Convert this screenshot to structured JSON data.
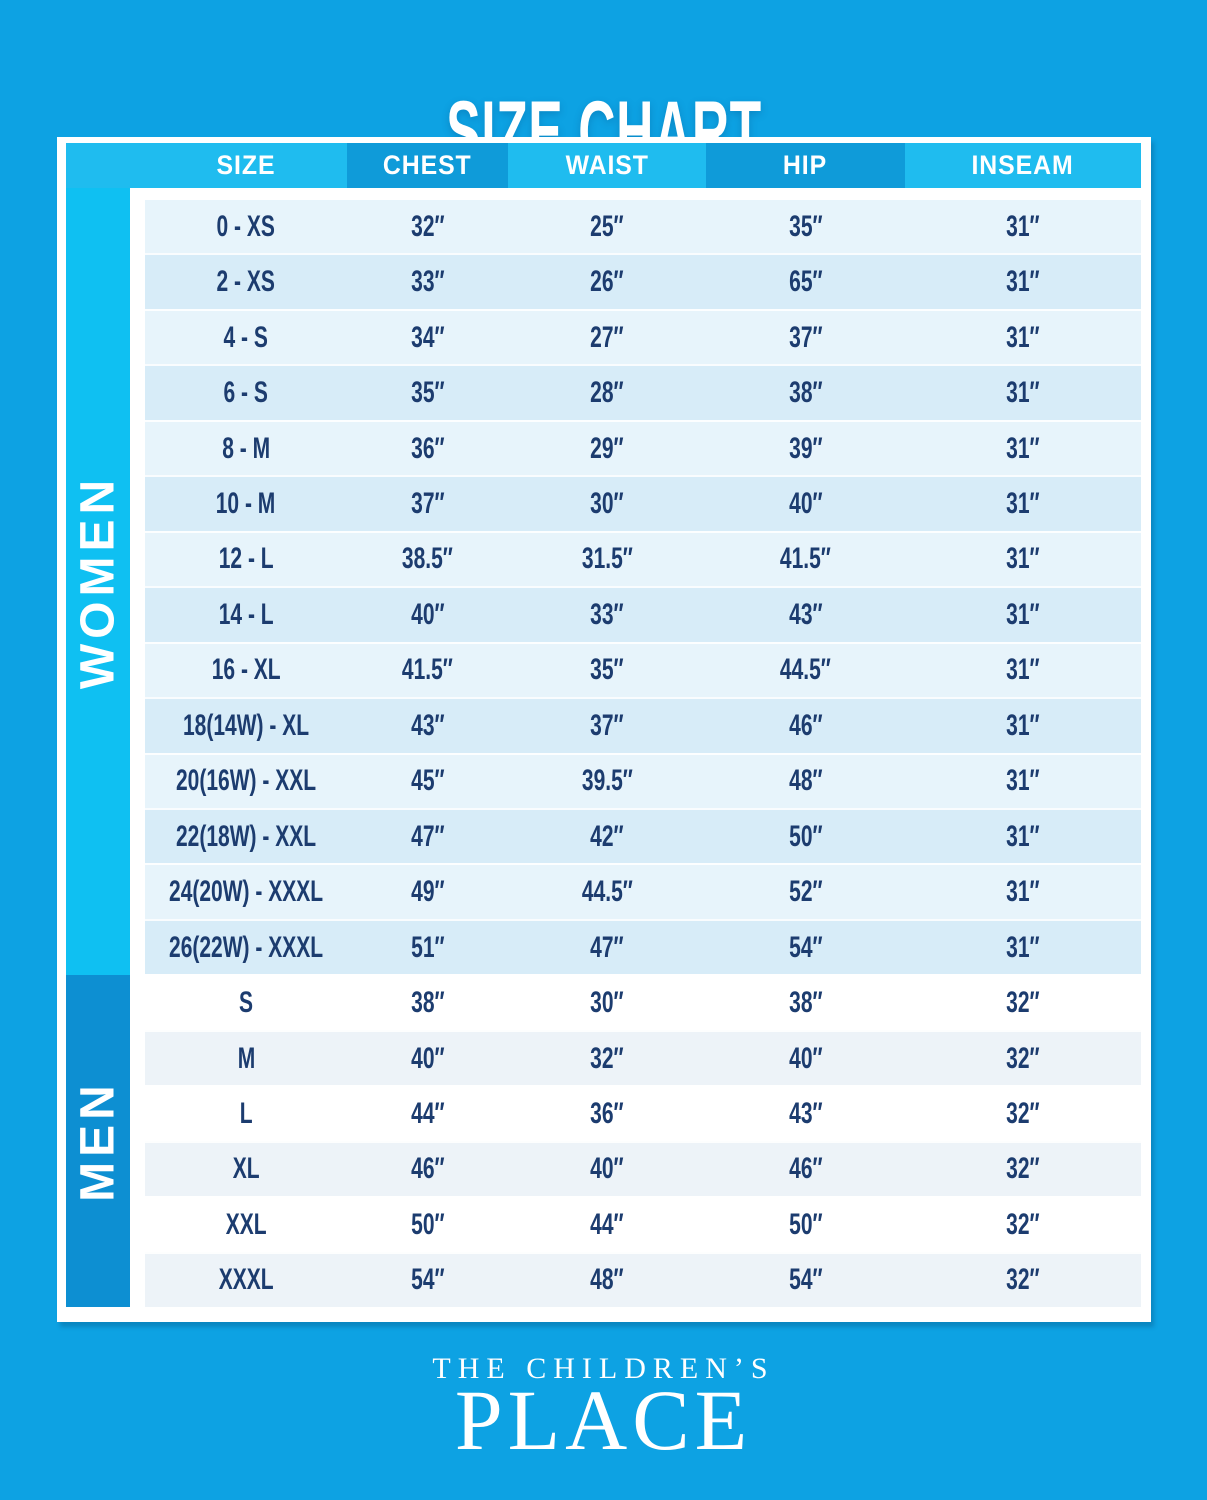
{
  "title": "SIZE CHART",
  "colors": {
    "background": "#0DA2E3",
    "header_light": "#1FBCEF",
    "header_dark": "#0F9BD9",
    "women_sidebar": "#0FC0F2",
    "men_sidebar": "#0D8FD2",
    "row_light_a": "#E7F4FB",
    "row_light_b": "#D7ECF8",
    "row_white": "#FFFFFF",
    "row_gray": "#EDF3F8",
    "text_navy": "#1C3C6F"
  },
  "table": {
    "headers": [
      "SIZE",
      "CHEST",
      "WAIST",
      "HIP",
      "INSEAM"
    ],
    "sections": [
      {
        "label": "WOMEN",
        "rows": [
          [
            "0 - XS",
            "32″",
            "25″",
            "35″",
            "31″"
          ],
          [
            "2 - XS",
            "33″",
            "26″",
            "65″",
            "31″"
          ],
          [
            "4 - S",
            "34″",
            "27″",
            "37″",
            "31″"
          ],
          [
            "6 - S",
            "35″",
            "28″",
            "38″",
            "31″"
          ],
          [
            "8 - M",
            "36″",
            "29″",
            "39″",
            "31″"
          ],
          [
            "10 - M",
            "37″",
            "30″",
            "40″",
            "31″"
          ],
          [
            "12 - L",
            "38.5″",
            "31.5″",
            "41.5″",
            "31″"
          ],
          [
            "14 - L",
            "40″",
            "33″",
            "43″",
            "31″"
          ],
          [
            "16 - XL",
            "41.5″",
            "35″",
            "44.5″",
            "31″"
          ],
          [
            "18(14W) - XL",
            "43″",
            "37″",
            "46″",
            "31″"
          ],
          [
            "20(16W) - XXL",
            "45″",
            "39.5″",
            "48″",
            "31″"
          ],
          [
            "22(18W) - XXL",
            "47″",
            "42″",
            "50″",
            "31″"
          ],
          [
            "24(20W) - XXXL",
            "49″",
            "44.5″",
            "52″",
            "31″"
          ],
          [
            "26(22W) - XXXL",
            "51″",
            "47″",
            "54″",
            "31″"
          ]
        ]
      },
      {
        "label": "MEN",
        "rows": [
          [
            "S",
            "38″",
            "30″",
            "38″",
            "32″"
          ],
          [
            "M",
            "40″",
            "32″",
            "40″",
            "32″"
          ],
          [
            "L",
            "44″",
            "36″",
            "43″",
            "32″"
          ],
          [
            "XL",
            "46″",
            "40″",
            "46″",
            "32″"
          ],
          [
            "XXL",
            "50″",
            "44″",
            "50″",
            "32″"
          ],
          [
            "XXXL",
            "54″",
            "48″",
            "54″",
            "32″"
          ]
        ]
      }
    ]
  },
  "footer": {
    "brand_line1": "THE CHILDREN’S",
    "brand_line2": "PLACE"
  }
}
